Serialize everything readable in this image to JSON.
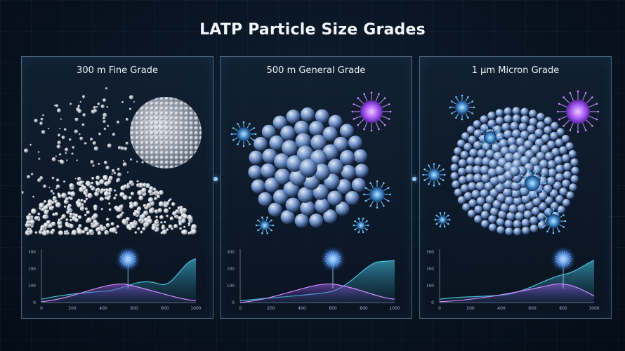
{
  "title": "LATP Particle Size Grades",
  "panels": [
    {
      "label": "300 m Fine Grade",
      "peak_x": 560
    },
    {
      "label": "500 m General Grade",
      "peak_x": 600
    },
    {
      "label": "1 μm Micron Grade",
      "peak_x": 800
    }
  ],
  "chart_axes": {
    "x_ticks": [
      "0",
      "200",
      "400",
      "600",
      "800",
      "1000"
    ],
    "y_ticks": [
      "0",
      "100",
      "200",
      "300"
    ]
  },
  "colors": {
    "teal_curve": "#3aa5c2",
    "purple_curve": "#b56fe6",
    "glow": "#5aa0ff",
    "particle_white": "#d9dde3",
    "particle_blue": "#5c86c9",
    "virus": "#9a52e8"
  }
}
